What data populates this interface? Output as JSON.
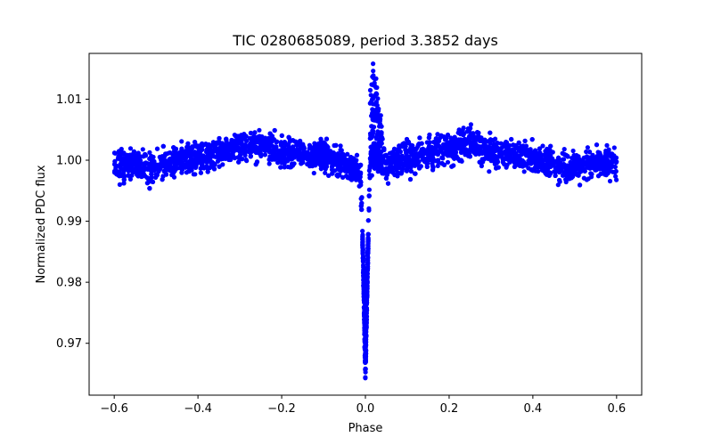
{
  "chart_data": {
    "type": "scatter",
    "title": "TIC 0280685089, period 3.3852 days",
    "xlabel": "Phase",
    "ylabel": "Normalized PDC flux",
    "xlim": [
      -0.66,
      0.66
    ],
    "ylim": [
      0.9615,
      1.0175
    ],
    "xticks": [
      -0.6,
      -0.4,
      -0.2,
      0.0,
      0.2,
      0.4,
      0.6
    ],
    "xtick_labels": [
      "−0.6",
      "−0.4",
      "−0.2",
      "0.0",
      "0.2",
      "0.4",
      "0.6"
    ],
    "yticks": [
      0.97,
      0.98,
      0.99,
      1.0,
      1.01
    ],
    "ytick_labels": [
      "0.97",
      "0.98",
      "0.99",
      "1.00",
      "1.01"
    ],
    "grid": false,
    "legend": "none",
    "marker_color": "#0000ff",
    "x_range": [
      -0.6,
      0.6
    ],
    "baseline_profile": [
      [
        -0.6,
        0.9995
      ],
      [
        -0.55,
        0.9995
      ],
      [
        -0.52,
        0.9985
      ],
      [
        -0.5,
        0.9985
      ],
      [
        -0.48,
        0.9995
      ],
      [
        -0.4,
        1.0005
      ],
      [
        -0.3,
        1.002
      ],
      [
        -0.25,
        1.0025
      ],
      [
        -0.2,
        1.0015
      ],
      [
        -0.1,
        1.0008
      ],
      [
        -0.05,
        0.9995
      ],
      [
        -0.02,
        0.998
      ],
      [
        0.0,
        0.9985
      ],
      [
        0.02,
        1.0005
      ],
      [
        0.05,
        0.999
      ],
      [
        0.1,
        1.0005
      ],
      [
        0.2,
        1.002
      ],
      [
        0.25,
        1.003
      ],
      [
        0.3,
        1.0015
      ],
      [
        0.4,
        1.0005
      ],
      [
        0.48,
        0.9985
      ],
      [
        0.5,
        0.999
      ],
      [
        0.52,
        0.9995
      ],
      [
        0.6,
        0.9995
      ]
    ],
    "transit": {
      "phase": 0.0,
      "depth_min": 0.9635,
      "half_width": 0.012
    },
    "spike": {
      "phase": 0.02,
      "max": 1.0155
    }
  }
}
